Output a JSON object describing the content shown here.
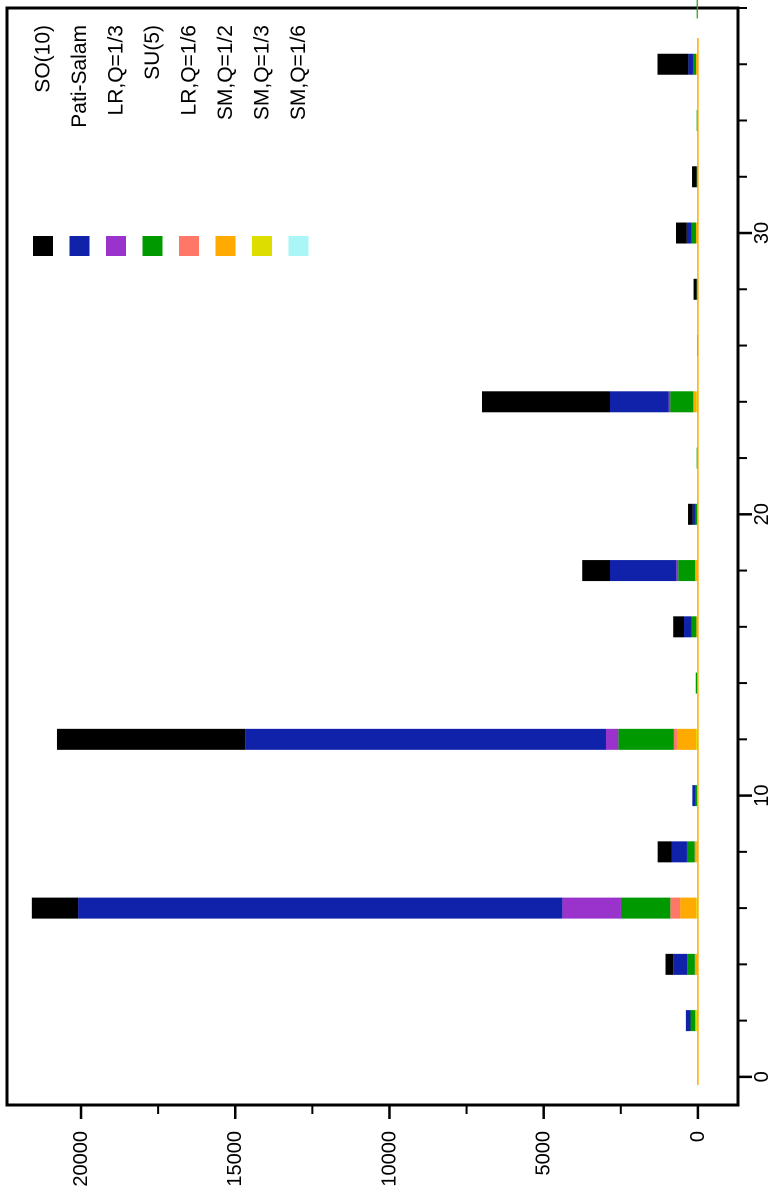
{
  "chart_data": {
    "type": "bar",
    "stacked": true,
    "orientation": "rotated",
    "x": [
      2,
      4,
      6,
      8,
      10,
      12,
      14,
      16,
      18,
      20,
      22,
      24,
      26,
      28,
      30,
      32,
      34,
      36,
      38
    ],
    "xlim": [
      -1,
      38
    ],
    "ylim": [
      -1300,
      22400
    ],
    "x_ticks": [
      0,
      10,
      20,
      30
    ],
    "x_tick_labels": [
      "0",
      "10",
      "20",
      "30"
    ],
    "x_minor_ticks": [
      2,
      4,
      6,
      8,
      12,
      14,
      16,
      18,
      22,
      24,
      26,
      28,
      32,
      34,
      36,
      38
    ],
    "y_ticks": [
      0,
      5000,
      10000,
      15000,
      20000
    ],
    "y_tick_labels": [
      "0",
      "5000",
      "10000",
      "15000",
      "20000"
    ],
    "y_minor_ticks": [
      2500,
      7500,
      12500,
      17500
    ],
    "legend_position": "top-right",
    "series": [
      {
        "name": "SM,Q=1/6",
        "color": "#aaf5f5",
        "values": [
          20,
          0,
          15,
          5,
          0,
          20,
          0,
          0,
          0,
          0,
          0,
          0,
          0,
          0,
          0,
          0,
          0,
          0,
          0
        ]
      },
      {
        "name": "SM,Q=1/3",
        "color": "#dddd00",
        "values": [
          40,
          30,
          40,
          30,
          10,
          40,
          10,
          20,
          30,
          10,
          0,
          50,
          0,
          0,
          30,
          0,
          0,
          30,
          0
        ]
      },
      {
        "name": "SM,Q=1/2",
        "color": "#ffaa00",
        "values": [
          30,
          60,
          520,
          60,
          20,
          620,
          10,
          30,
          40,
          10,
          10,
          90,
          0,
          10,
          30,
          10,
          10,
          30,
          10
        ]
      },
      {
        "name": "LR,Q=1/6",
        "color": "#ff7766",
        "values": [
          0,
          10,
          320,
          10,
          0,
          100,
          0,
          0,
          20,
          0,
          0,
          10,
          0,
          0,
          0,
          0,
          0,
          0,
          0
        ]
      },
      {
        "name": "SU(5)",
        "color": "#009900",
        "values": [
          150,
          250,
          1600,
          250,
          50,
          1800,
          50,
          150,
          550,
          50,
          30,
          750,
          30,
          30,
          150,
          30,
          30,
          100,
          30
        ]
      },
      {
        "name": "LR,Q=1/3",
        "color": "#9933cc",
        "values": [
          0,
          0,
          1900,
          0,
          0,
          400,
          0,
          0,
          60,
          0,
          0,
          50,
          0,
          0,
          0,
          0,
          0,
          0,
          0
        ]
      },
      {
        "name": "Pati-Salam",
        "color": "#1122aa",
        "values": [
          150,
          450,
          15700,
          500,
          100,
          11700,
          0,
          250,
          2150,
          100,
          0,
          1900,
          0,
          0,
          150,
          0,
          0,
          150,
          0
        ]
      },
      {
        "name": "SO(10)",
        "color": "#000000",
        "values": [
          0,
          250,
          1500,
          450,
          0,
          6100,
          0,
          350,
          900,
          150,
          0,
          4150,
          0,
          100,
          350,
          150,
          0,
          1000,
          0
        ]
      }
    ],
    "legend_order": [
      "SO(10)",
      "Pati-Salam",
      "LR,Q=1/3",
      "SU(5)",
      "LR,Q=1/6",
      "SM,Q=1/2",
      "SM,Q=1/3",
      "SM,Q=1/6"
    ],
    "title": "",
    "xlabel": "",
    "ylabel": ""
  }
}
